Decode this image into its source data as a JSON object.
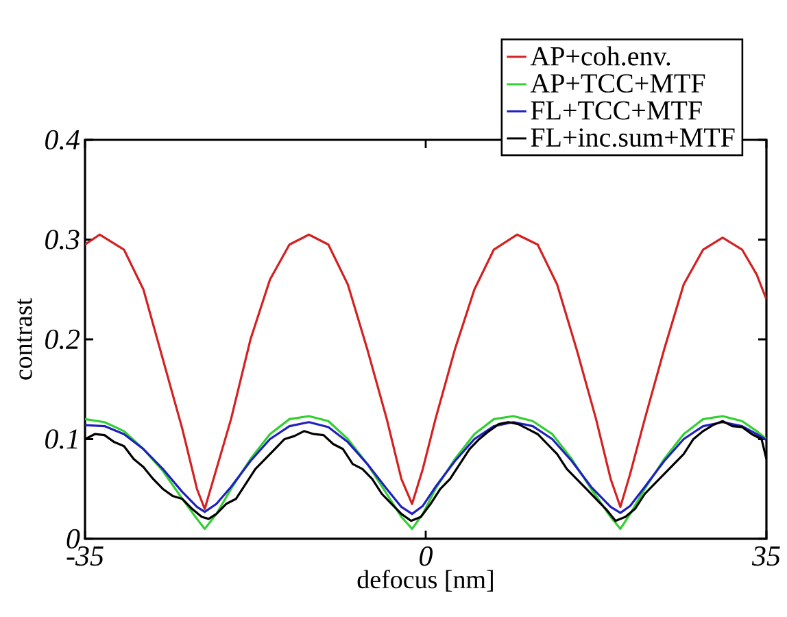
{
  "chart_data": {
    "type": "line",
    "xlabel": "defocus [nm]",
    "ylabel": "contrast",
    "xlim": [
      -35,
      35
    ],
    "xticks": [
      -35,
      0,
      35
    ],
    "ylim": [
      0,
      0.4
    ],
    "yticks": [
      0,
      0.1,
      0.2,
      0.3,
      0.4
    ],
    "grid": false,
    "legend": "top right",
    "marker": "none",
    "line_style": "solid",
    "series": [
      {
        "name": "AP+coh.env.",
        "color": "#d42020",
        "x": [
          -35,
          -33.5,
          -31,
          -29,
          -27,
          -25,
          -23.5,
          -22.7,
          -21.5,
          -20,
          -18,
          -16,
          -14,
          -12,
          -10,
          -8,
          -6,
          -4,
          -2.5,
          -1.4,
          -0.3,
          1,
          3,
          5,
          7,
          9.4,
          11.5,
          13.5,
          15.5,
          17.5,
          19,
          20,
          21,
          22.5,
          24.5,
          26.5,
          28.5,
          30.5,
          32.5,
          34,
          35
        ],
        "values": [
          0.295,
          0.305,
          0.29,
          0.25,
          0.18,
          0.11,
          0.05,
          0.03,
          0.07,
          0.12,
          0.2,
          0.26,
          0.295,
          0.305,
          0.295,
          0.255,
          0.19,
          0.12,
          0.06,
          0.035,
          0.07,
          0.12,
          0.19,
          0.25,
          0.29,
          0.305,
          0.295,
          0.255,
          0.19,
          0.12,
          0.06,
          0.032,
          0.065,
          0.12,
          0.19,
          0.255,
          0.29,
          0.302,
          0.29,
          0.265,
          0.24
        ]
      },
      {
        "name": "AP+TCC+MTF",
        "color": "#30d030",
        "x": [
          -35,
          -33,
          -31,
          -29,
          -27,
          -25,
          -23.5,
          -22.7,
          -21.5,
          -20,
          -18,
          -16,
          -14,
          -12,
          -10,
          -8,
          -6,
          -4,
          -2.5,
          -1.4,
          -0.3,
          1,
          3,
          5,
          7,
          9,
          11,
          13,
          15,
          17,
          19,
          20,
          21,
          22.5,
          24.5,
          26.5,
          28.5,
          30.5,
          32.5,
          34,
          35
        ],
        "values": [
          0.12,
          0.117,
          0.108,
          0.09,
          0.068,
          0.04,
          0.02,
          0.01,
          0.025,
          0.05,
          0.08,
          0.105,
          0.12,
          0.123,
          0.118,
          0.1,
          0.075,
          0.045,
          0.022,
          0.01,
          0.025,
          0.05,
          0.08,
          0.105,
          0.12,
          0.123,
          0.118,
          0.105,
          0.08,
          0.05,
          0.022,
          0.01,
          0.025,
          0.05,
          0.08,
          0.105,
          0.12,
          0.123,
          0.118,
          0.108,
          0.1
        ]
      },
      {
        "name": "FL+TCC+MTF",
        "color": "#1f1fc0",
        "x": [
          -35,
          -33,
          -31,
          -29,
          -27,
          -25,
          -23.5,
          -22.7,
          -21.5,
          -20,
          -18,
          -16,
          -14,
          -12,
          -10,
          -8,
          -6,
          -4,
          -2.5,
          -1.4,
          -0.3,
          1,
          3,
          5,
          7,
          9,
          11,
          13,
          15,
          17,
          19,
          20,
          21,
          22.5,
          24.5,
          26.5,
          28.5,
          30.5,
          32.5,
          34,
          35
        ],
        "values": [
          0.114,
          0.113,
          0.105,
          0.09,
          0.07,
          0.047,
          0.032,
          0.027,
          0.035,
          0.052,
          0.078,
          0.1,
          0.113,
          0.117,
          0.112,
          0.097,
          0.075,
          0.05,
          0.032,
          0.025,
          0.033,
          0.052,
          0.078,
          0.1,
          0.113,
          0.117,
          0.113,
          0.1,
          0.078,
          0.052,
          0.032,
          0.026,
          0.033,
          0.052,
          0.078,
          0.1,
          0.113,
          0.117,
          0.113,
          0.105,
          0.099
        ]
      },
      {
        "name": "FL+inc.sum+MTF",
        "color": "#000000",
        "x": [
          -35,
          -34,
          -33,
          -32,
          -31,
          -30,
          -29,
          -28,
          -27,
          -26,
          -25,
          -24,
          -23,
          -22.3,
          -21.5,
          -20.5,
          -19.5,
          -18.5,
          -17.5,
          -16.5,
          -15.5,
          -14.5,
          -13.5,
          -12.5,
          -11.5,
          -10.5,
          -9.5,
          -8.5,
          -7.5,
          -6.5,
          -5.5,
          -4.5,
          -3.5,
          -2.5,
          -1.5,
          -0.5,
          0.5,
          1.5,
          2.5,
          3.5,
          4.5,
          5.5,
          6.5,
          7.5,
          8.5,
          9.5,
          10.5,
          11.5,
          12.5,
          13.5,
          14.5,
          15.5,
          16.5,
          17.5,
          18.5,
          19.5,
          20.5,
          21.5,
          22.5,
          23.5,
          24.5,
          25.5,
          26.5,
          27.5,
          28.5,
          29.5,
          30.5,
          31.5,
          32.5,
          33.5,
          34.5,
          35
        ],
        "values": [
          0.1,
          0.105,
          0.104,
          0.097,
          0.093,
          0.08,
          0.072,
          0.06,
          0.05,
          0.043,
          0.04,
          0.03,
          0.022,
          0.02,
          0.025,
          0.035,
          0.04,
          0.055,
          0.07,
          0.08,
          0.09,
          0.1,
          0.103,
          0.108,
          0.105,
          0.104,
          0.095,
          0.09,
          0.075,
          0.07,
          0.06,
          0.045,
          0.035,
          0.025,
          0.018,
          0.022,
          0.035,
          0.05,
          0.06,
          0.075,
          0.09,
          0.1,
          0.108,
          0.115,
          0.117,
          0.115,
          0.11,
          0.105,
          0.095,
          0.085,
          0.07,
          0.06,
          0.05,
          0.04,
          0.03,
          0.018,
          0.022,
          0.03,
          0.045,
          0.055,
          0.065,
          0.075,
          0.085,
          0.1,
          0.108,
          0.114,
          0.118,
          0.113,
          0.112,
          0.105,
          0.1,
          0.08
        ]
      }
    ]
  }
}
